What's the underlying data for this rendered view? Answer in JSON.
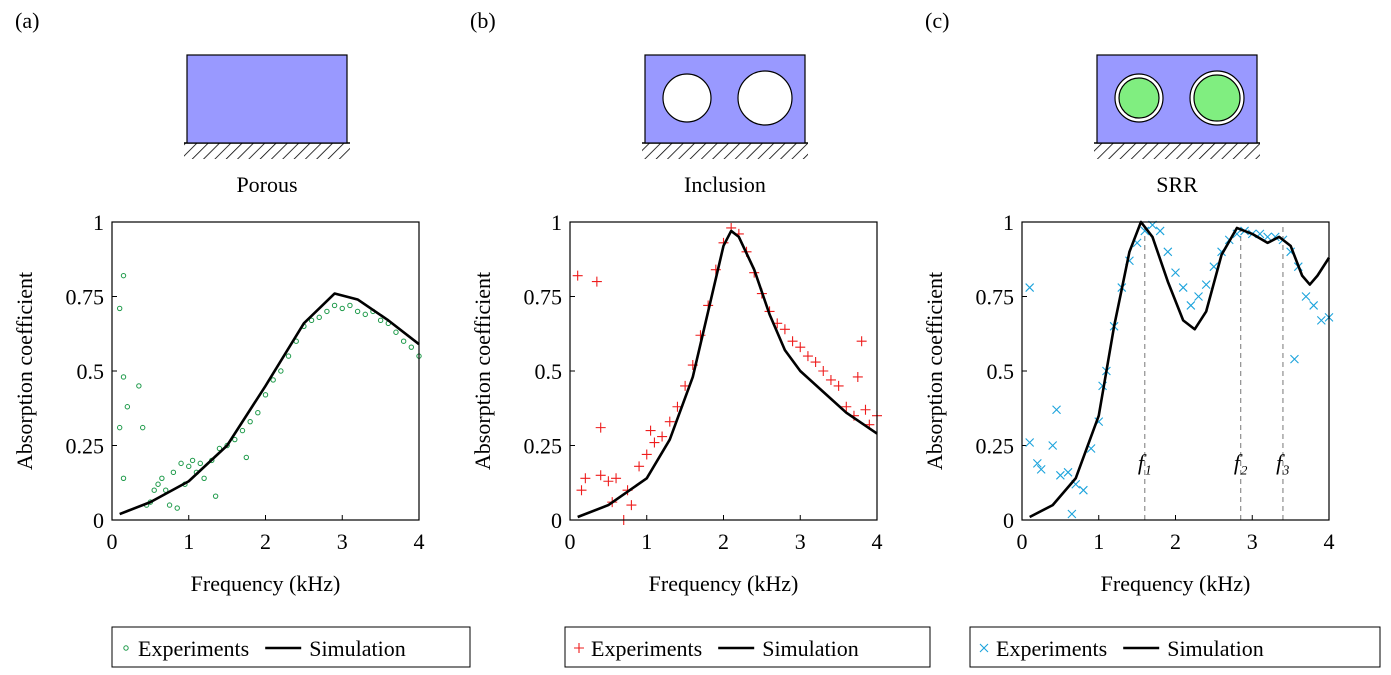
{
  "chart_data": [
    {
      "type": "scatter",
      "panel_label": "(a)",
      "subtitle": "Porous",
      "xlabel": "Frequency (kHz)",
      "ylabel": "Absorption coefficient",
      "xlim": [
        0,
        4
      ],
      "ylim": [
        0,
        1
      ],
      "xticks": [
        0,
        1,
        2,
        3,
        4
      ],
      "yticks": [
        0,
        0.25,
        0.5,
        0.75,
        1
      ],
      "legend": "bottom",
      "series": [
        {
          "name": "Experiments",
          "color": "#1e9a4a",
          "marker": "circle",
          "x": [
            0.1,
            0.15,
            0.1,
            0.15,
            0.2,
            0.15,
            0.35,
            0.4,
            0.45,
            0.5,
            0.55,
            0.6,
            0.65,
            0.7,
            0.75,
            0.8,
            0.85,
            0.9,
            0.95,
            1.0,
            1.05,
            1.1,
            1.15,
            1.2,
            1.3,
            1.35,
            1.4,
            1.5,
            1.6,
            1.7,
            1.75,
            1.8,
            1.9,
            2.0,
            2.1,
            2.2,
            2.3,
            2.4,
            2.5,
            2.6,
            2.7,
            2.8,
            2.9,
            3.0,
            3.1,
            3.2,
            3.3,
            3.4,
            3.5,
            3.6,
            3.7,
            3.8,
            3.9,
            4.0
          ],
          "values": [
            0.71,
            0.82,
            0.31,
            0.48,
            0.38,
            0.14,
            0.45,
            0.31,
            0.05,
            0.06,
            0.1,
            0.12,
            0.14,
            0.1,
            0.05,
            0.16,
            0.04,
            0.19,
            0.12,
            0.18,
            0.2,
            0.16,
            0.19,
            0.14,
            0.2,
            0.08,
            0.24,
            0.25,
            0.27,
            0.3,
            0.21,
            0.33,
            0.36,
            0.42,
            0.47,
            0.5,
            0.55,
            0.6,
            0.65,
            0.67,
            0.68,
            0.7,
            0.72,
            0.71,
            0.72,
            0.7,
            0.69,
            0.7,
            0.67,
            0.66,
            0.63,
            0.6,
            0.58,
            0.55
          ]
        },
        {
          "name": "Simulation",
          "color": "#000000",
          "marker": "line",
          "x": [
            0.1,
            0.5,
            1,
            1.5,
            2,
            2.5,
            2.9,
            3.2,
            3.6,
            4
          ],
          "values": [
            0.02,
            0.06,
            0.13,
            0.25,
            0.45,
            0.66,
            0.76,
            0.74,
            0.67,
            0.59
          ]
        }
      ]
    },
    {
      "type": "scatter",
      "panel_label": "(b)",
      "subtitle": "Inclusion",
      "xlabel": "Frequency (kHz)",
      "ylabel": "Absorption coefficient",
      "xlim": [
        0,
        4
      ],
      "ylim": [
        0,
        1
      ],
      "xticks": [
        0,
        1,
        2,
        3,
        4
      ],
      "yticks": [
        0,
        0.25,
        0.5,
        0.75,
        1
      ],
      "legend": "bottom",
      "series": [
        {
          "name": "Experiments",
          "color": "#ee1c1c",
          "marker": "plus",
          "x": [
            0.1,
            0.15,
            0.2,
            0.35,
            0.4,
            0.4,
            0.5,
            0.55,
            0.6,
            0.7,
            0.75,
            0.8,
            0.9,
            1.0,
            1.05,
            1.1,
            1.2,
            1.3,
            1.4,
            1.5,
            1.6,
            1.7,
            1.8,
            1.9,
            2.0,
            2.1,
            2.2,
            2.3,
            2.4,
            2.5,
            2.6,
            2.7,
            2.8,
            2.9,
            3.0,
            3.1,
            3.2,
            3.3,
            3.4,
            3.5,
            3.6,
            3.7,
            3.75,
            3.8,
            3.85,
            3.9,
            4.0
          ],
          "values": [
            0.82,
            0.1,
            0.14,
            0.8,
            0.31,
            0.15,
            0.13,
            0.06,
            0.14,
            0.0,
            0.1,
            0.05,
            0.18,
            0.22,
            0.3,
            0.26,
            0.28,
            0.33,
            0.38,
            0.45,
            0.52,
            0.62,
            0.72,
            0.84,
            0.93,
            0.98,
            0.96,
            0.9,
            0.83,
            0.76,
            0.7,
            0.66,
            0.64,
            0.6,
            0.58,
            0.55,
            0.53,
            0.5,
            0.47,
            0.45,
            0.38,
            0.35,
            0.48,
            0.6,
            0.37,
            0.32,
            0.35
          ]
        },
        {
          "name": "Simulation",
          "color": "#000000",
          "marker": "line",
          "x": [
            0.1,
            0.5,
            1,
            1.3,
            1.6,
            1.8,
            2.0,
            2.1,
            2.2,
            2.4,
            2.6,
            2.8,
            3.0,
            3.3,
            3.6,
            4.0
          ],
          "values": [
            0.01,
            0.05,
            0.14,
            0.27,
            0.48,
            0.7,
            0.92,
            0.97,
            0.95,
            0.84,
            0.69,
            0.57,
            0.5,
            0.43,
            0.36,
            0.29
          ]
        }
      ]
    },
    {
      "type": "scatter",
      "panel_label": "(c)",
      "subtitle": "SRR",
      "xlabel": "Frequency (kHz)",
      "ylabel": "Absorption coefficient",
      "xlim": [
        0,
        4
      ],
      "ylim": [
        0,
        1
      ],
      "xticks": [
        0,
        1,
        2,
        3,
        4
      ],
      "yticks": [
        0,
        0.25,
        0.5,
        0.75,
        1
      ],
      "legend": "bottom",
      "annotations": [
        {
          "text": "f₁",
          "x": 1.6
        },
        {
          "text": "f₂",
          "x": 2.85
        },
        {
          "text": "f₃",
          "x": 3.4
        }
      ],
      "series": [
        {
          "name": "Experiments",
          "color": "#1ca3dc",
          "marker": "cross",
          "x": [
            0.1,
            0.1,
            0.2,
            0.25,
            0.4,
            0.45,
            0.5,
            0.6,
            0.65,
            0.7,
            0.8,
            0.9,
            1.0,
            1.05,
            1.1,
            1.2,
            1.3,
            1.4,
            1.5,
            1.6,
            1.7,
            1.8,
            1.9,
            2.0,
            2.1,
            2.2,
            2.3,
            2.4,
            2.5,
            2.6,
            2.7,
            2.8,
            2.9,
            3.0,
            3.1,
            3.2,
            3.3,
            3.4,
            3.5,
            3.55,
            3.6,
            3.7,
            3.8,
            3.9,
            4.0
          ],
          "values": [
            0.78,
            0.26,
            0.19,
            0.17,
            0.25,
            0.37,
            0.15,
            0.16,
            0.02,
            0.12,
            0.1,
            0.24,
            0.33,
            0.45,
            0.5,
            0.65,
            0.78,
            0.87,
            0.93,
            0.97,
            0.99,
            0.97,
            0.9,
            0.83,
            0.78,
            0.72,
            0.75,
            0.79,
            0.85,
            0.9,
            0.94,
            0.96,
            0.97,
            0.96,
            0.96,
            0.95,
            0.95,
            0.94,
            0.9,
            0.54,
            0.85,
            0.75,
            0.72,
            0.67,
            0.68
          ]
        },
        {
          "name": "Simulation",
          "color": "#000000",
          "marker": "line",
          "x": [
            0.1,
            0.4,
            0.7,
            1.0,
            1.2,
            1.4,
            1.55,
            1.7,
            1.9,
            2.1,
            2.25,
            2.4,
            2.6,
            2.8,
            3.0,
            3.2,
            3.35,
            3.5,
            3.65,
            3.75,
            3.85,
            4.0
          ],
          "values": [
            0.01,
            0.05,
            0.14,
            0.35,
            0.65,
            0.9,
            1.0,
            0.95,
            0.8,
            0.67,
            0.64,
            0.7,
            0.89,
            0.98,
            0.96,
            0.93,
            0.95,
            0.92,
            0.82,
            0.79,
            0.82,
            0.88
          ]
        }
      ]
    }
  ]
}
